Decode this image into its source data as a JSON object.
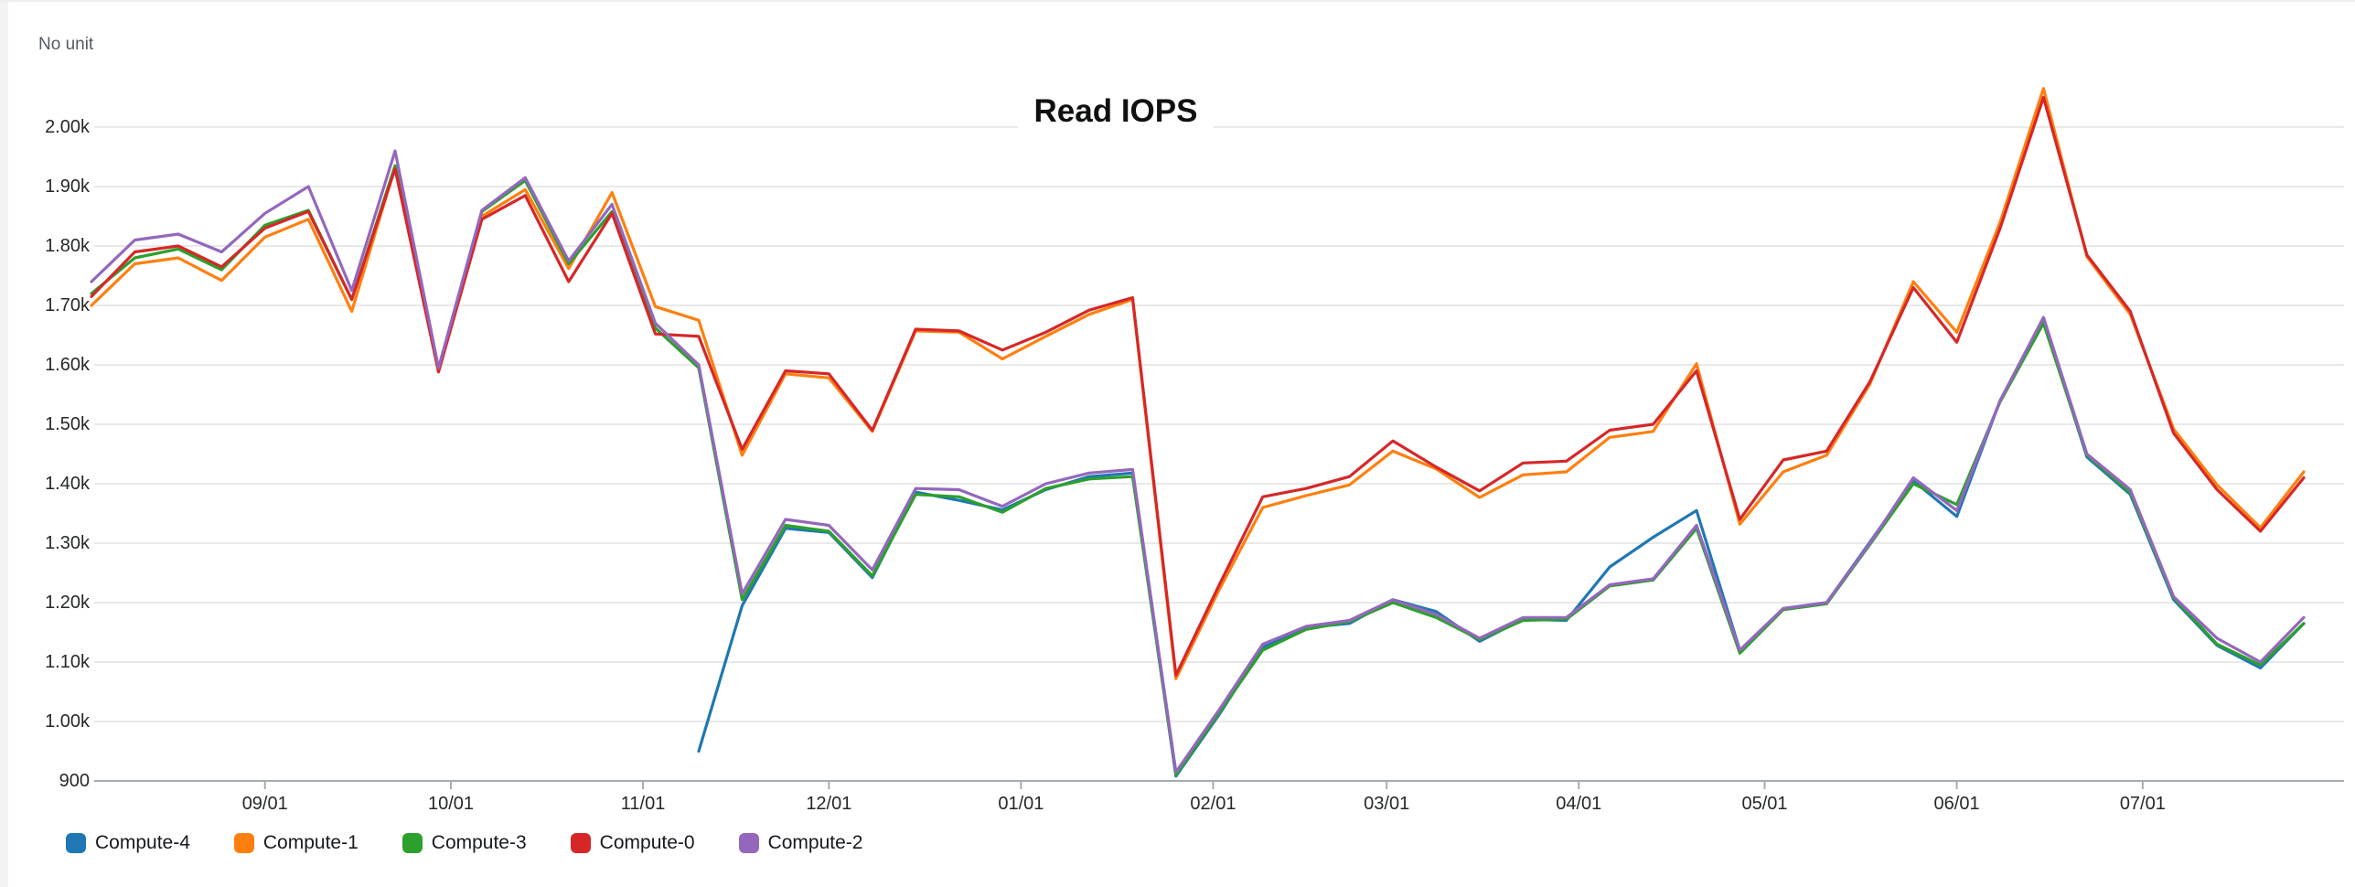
{
  "header": {
    "unit_label": "No unit",
    "title": "Read IOPS"
  },
  "chart_data": {
    "type": "line",
    "title": "Read IOPS",
    "unit": "No unit",
    "grid": "horizontal",
    "legend_position": "bottom",
    "ylim": [
      900,
      2000
    ],
    "y_ticks": [
      {
        "label": "2.00k",
        "value": 2000
      },
      {
        "label": "1.90k",
        "value": 1900
      },
      {
        "label": "1.80k",
        "value": 1800
      },
      {
        "label": "1.70k",
        "value": 1700
      },
      {
        "label": "1.60k",
        "value": 1600
      },
      {
        "label": "1.50k",
        "value": 1500
      },
      {
        "label": "1.40k",
        "value": 1400
      },
      {
        "label": "1.30k",
        "value": 1300
      },
      {
        "label": "1.20k",
        "value": 1200
      },
      {
        "label": "1.10k",
        "value": 1100
      },
      {
        "label": "1.00k",
        "value": 1000
      },
      {
        "label": "900",
        "value": 900
      }
    ],
    "x_ticks": [
      {
        "label": "09/01",
        "day": 28
      },
      {
        "label": "10/01",
        "day": 58
      },
      {
        "label": "11/01",
        "day": 89
      },
      {
        "label": "12/01",
        "day": 119
      },
      {
        "label": "01/01",
        "day": 150
      },
      {
        "label": "02/01",
        "day": 181
      },
      {
        "label": "03/01",
        "day": 209
      },
      {
        "label": "04/01",
        "day": 240
      },
      {
        "label": "05/01",
        "day": 270
      },
      {
        "label": "06/01",
        "day": 301
      },
      {
        "label": "07/01",
        "day": 331
      }
    ],
    "x_dates": [
      "08/04",
      "08/11",
      "08/18",
      "08/25",
      "09/01",
      "09/08",
      "09/15",
      "09/22",
      "09/29",
      "10/06",
      "10/13",
      "10/20",
      "10/27",
      "11/03",
      "11/10",
      "11/17",
      "11/24",
      "12/01",
      "12/08",
      "12/15",
      "12/22",
      "12/29",
      "01/05",
      "01/12",
      "01/19",
      "01/26",
      "02/02",
      "02/09",
      "02/16",
      "02/23",
      "03/02",
      "03/09",
      "03/16",
      "03/23",
      "03/30",
      "04/06",
      "04/13",
      "04/20",
      "04/27",
      "05/04",
      "05/11",
      "05/18",
      "05/25",
      "06/01",
      "06/08",
      "06/15",
      "06/22",
      "06/29",
      "07/06",
      "07/13",
      "07/20",
      "07/27"
    ],
    "series": [
      {
        "name": "Compute-4",
        "color": "#1f77b4",
        "values": [
          null,
          null,
          null,
          null,
          null,
          null,
          null,
          null,
          null,
          null,
          null,
          null,
          null,
          null,
          950,
          1195,
          1325,
          1318,
          1242,
          1386,
          1372,
          1356,
          1390,
          1412,
          1418,
          908,
          1012,
          1125,
          1158,
          1165,
          1205,
          1185,
          1135,
          1172,
          1170,
          1260,
          1310,
          1355,
          1120,
          1190,
          1200,
          1302,
          1405,
          1345,
          1540,
          1675,
          1445,
          1382,
          1205,
          1128,
          1090,
          1165
        ]
      },
      {
        "name": "Compute-1",
        "color": "#ff7f0e",
        "values": [
          1700,
          1770,
          1780,
          1742,
          1815,
          1845,
          1690,
          1933,
          1592,
          1850,
          1895,
          1762,
          1890,
          1698,
          1675,
          1448,
          1585,
          1578,
          1488,
          1657,
          1655,
          1610,
          1648,
          1685,
          1710,
          1072,
          1222,
          1360,
          1380,
          1398,
          1455,
          1425,
          1377,
          1415,
          1420,
          1478,
          1488,
          1602,
          1332,
          1420,
          1448,
          1568,
          1740,
          1655,
          1840,
          2065,
          1782,
          1685,
          1492,
          1398,
          1326,
          1420
        ]
      },
      {
        "name": "Compute-3",
        "color": "#2ca02c",
        "values": [
          1720,
          1780,
          1795,
          1760,
          1835,
          1860,
          1710,
          1935,
          1590,
          1858,
          1910,
          1770,
          1858,
          1662,
          1595,
          1205,
          1330,
          1320,
          1245,
          1382,
          1378,
          1352,
          1392,
          1408,
          1412,
          910,
          1015,
          1120,
          1155,
          1168,
          1200,
          1175,
          1138,
          1170,
          1172,
          1228,
          1238,
          1325,
          1115,
          1188,
          1198,
          1298,
          1400,
          1365,
          1538,
          1670,
          1448,
          1385,
          1208,
          1130,
          1095,
          1165
        ]
      },
      {
        "name": "Compute-0",
        "color": "#d62728",
        "values": [
          1715,
          1790,
          1800,
          1765,
          1830,
          1858,
          1710,
          1930,
          1588,
          1845,
          1885,
          1740,
          1855,
          1652,
          1648,
          1458,
          1590,
          1585,
          1490,
          1660,
          1657,
          1625,
          1655,
          1692,
          1713,
          1078,
          1230,
          1378,
          1392,
          1412,
          1472,
          1428,
          1388,
          1435,
          1438,
          1490,
          1500,
          1590,
          1340,
          1440,
          1455,
          1572,
          1730,
          1638,
          1830,
          2050,
          1785,
          1690,
          1485,
          1390,
          1320,
          1410
        ]
      },
      {
        "name": "Compute-2",
        "color": "#9467bd",
        "values": [
          1740,
          1810,
          1820,
          1790,
          1855,
          1900,
          1725,
          1960,
          1595,
          1860,
          1915,
          1775,
          1870,
          1670,
          1600,
          1215,
          1340,
          1330,
          1255,
          1392,
          1390,
          1362,
          1400,
          1418,
          1424,
          915,
          1020,
          1130,
          1160,
          1170,
          1205,
          1180,
          1140,
          1175,
          1175,
          1230,
          1240,
          1330,
          1120,
          1190,
          1200,
          1300,
          1410,
          1355,
          1540,
          1680,
          1450,
          1390,
          1210,
          1140,
          1100,
          1175
        ]
      }
    ]
  }
}
